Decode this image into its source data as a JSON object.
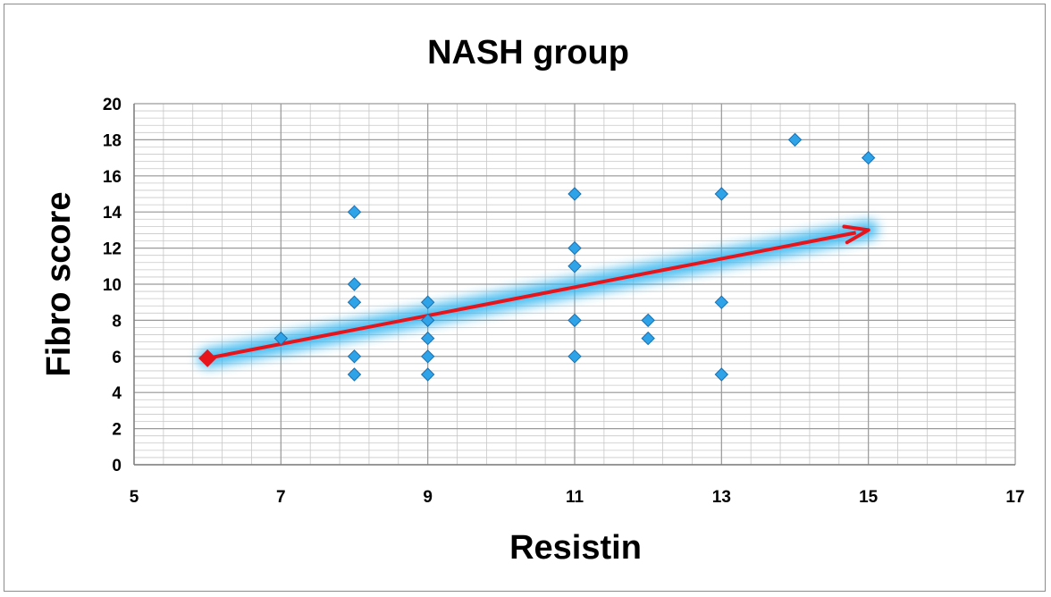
{
  "chart_data": {
    "type": "scatter",
    "title": "NASH group",
    "xlabel": "Resistin",
    "ylabel": "Fibro score",
    "xlim": [
      5,
      17
    ],
    "ylim": [
      0,
      20
    ],
    "x_ticks": [
      5,
      7,
      9,
      11,
      13,
      15,
      17
    ],
    "y_ticks": [
      0,
      2,
      4,
      6,
      8,
      10,
      12,
      14,
      16,
      18,
      20
    ],
    "grid": "on",
    "series": [
      {
        "points": [
          {
            "x": 7,
            "y": 7
          },
          {
            "x": 8,
            "y": 14
          },
          {
            "x": 8,
            "y": 10
          },
          {
            "x": 8,
            "y": 9
          },
          {
            "x": 8,
            "y": 6
          },
          {
            "x": 8,
            "y": 5
          },
          {
            "x": 9,
            "y": 9
          },
          {
            "x": 9,
            "y": 8
          },
          {
            "x": 9,
            "y": 7
          },
          {
            "x": 9,
            "y": 6
          },
          {
            "x": 9,
            "y": 5
          },
          {
            "x": 11,
            "y": 15
          },
          {
            "x": 11,
            "y": 12
          },
          {
            "x": 11,
            "y": 11
          },
          {
            "x": 11,
            "y": 8
          },
          {
            "x": 11,
            "y": 6
          },
          {
            "x": 12,
            "y": 8
          },
          {
            "x": 12,
            "y": 7
          },
          {
            "x": 13,
            "y": 15
          },
          {
            "x": 13,
            "y": 9
          },
          {
            "x": 13,
            "y": 5
          },
          {
            "x": 14,
            "y": 18
          },
          {
            "x": 15,
            "y": 17
          }
        ]
      }
    ],
    "annotation_arrow": {
      "from": {
        "x": 6,
        "y": 5.9
      },
      "to": {
        "x": 15,
        "y": 13
      }
    },
    "colors": {
      "marker": "#2ea3e8",
      "marker_edge": "#1a6fb0",
      "arrow": "#e8141c",
      "glow": "#35b6f0",
      "grid": "#9a9a9a"
    }
  }
}
